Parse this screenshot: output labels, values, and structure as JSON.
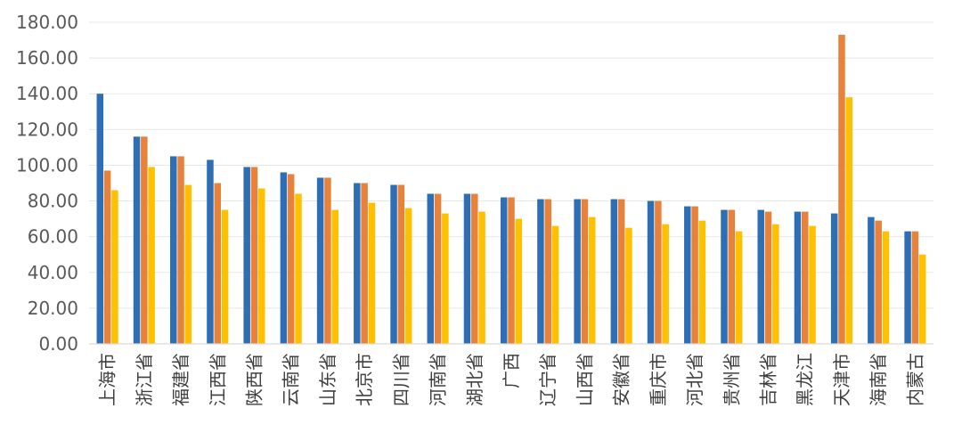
{
  "chart_data": {
    "type": "bar",
    "title": "",
    "xlabel": "",
    "ylabel": "",
    "ylim": [
      0,
      180
    ],
    "yticks": [
      0,
      20,
      40,
      60,
      80,
      100,
      120,
      140,
      160,
      180
    ],
    "ytick_labels": [
      "0.00",
      "20.00",
      "40.00",
      "60.00",
      "80.00",
      "100.00",
      "120.00",
      "140.00",
      "160.00",
      "180.00"
    ],
    "grid": true,
    "legend": "none",
    "categories": [
      "上海市",
      "浙江省",
      "福建省",
      "江西省",
      "陕西省",
      "云南省",
      "山东省",
      "北京市",
      "四川省",
      "河南省",
      "湖北省",
      "广西",
      "辽宁省",
      "山西省",
      "安徽省",
      "重庆市",
      "河北省",
      "贵州省",
      "吉林省",
      "黑龙江",
      "天津市",
      "海南省",
      "内蒙古"
    ],
    "series": [
      {
        "color": "#2E6EB5",
        "values": [
          140,
          116,
          105,
          103,
          99,
          96,
          93,
          90,
          89,
          84,
          84,
          82,
          81,
          81,
          81,
          80,
          77,
          75,
          75,
          74,
          73,
          71,
          63
        ]
      },
      {
        "color": "#E8823A",
        "values": [
          97,
          116,
          105,
          90,
          99,
          95,
          93,
          90,
          89,
          84,
          84,
          82,
          81,
          81,
          81,
          80,
          77,
          75,
          74,
          74,
          173,
          69,
          63
        ]
      },
      {
        "color": "#FFC000",
        "values": [
          86,
          99,
          89,
          75,
          87,
          84,
          75,
          79,
          76,
          73,
          74,
          70,
          66,
          71,
          65,
          67,
          69,
          63,
          67,
          66,
          138,
          63,
          50
        ]
      }
    ]
  }
}
